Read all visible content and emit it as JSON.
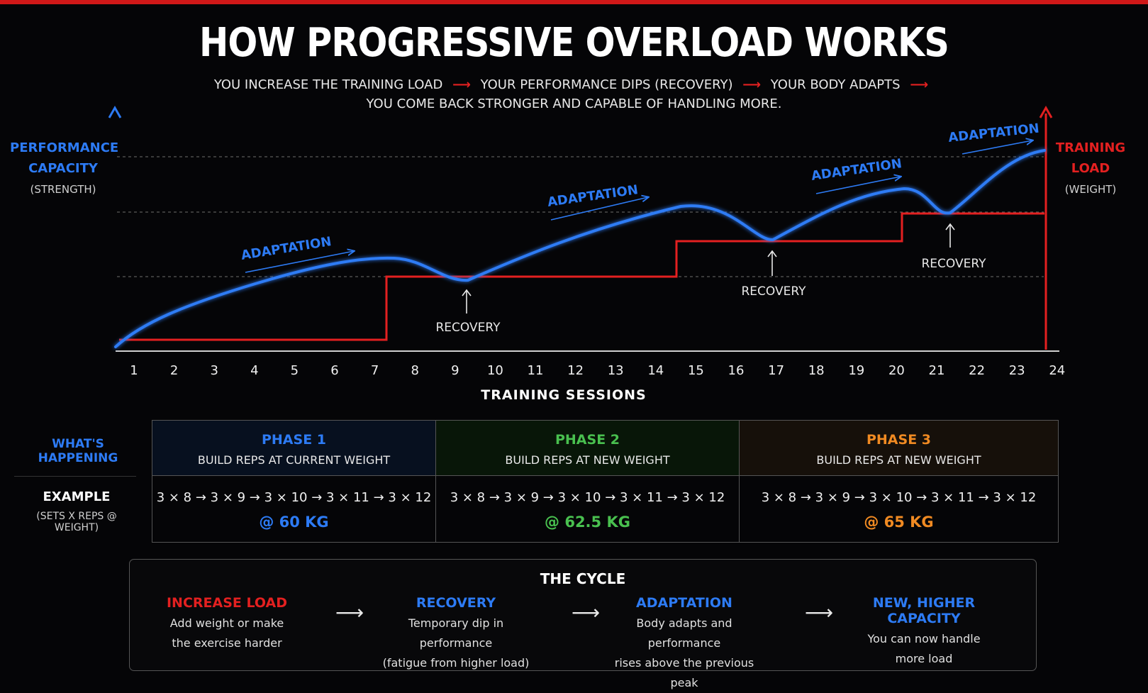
{
  "title": "HOW PROGRESSIVE OVERLOAD WORKS",
  "subtitle": {
    "parts": [
      "YOU INCREASE THE TRAINING LOAD",
      "YOUR PERFORMANCE DIPS (RECOVERY)",
      "YOUR BODY ADAPTS"
    ],
    "line2": "YOU COME BACK STRONGER AND CAPABLE OF HANDLING MORE.",
    "arrow": "⟶"
  },
  "colors": {
    "blue": "#2d7bf5",
    "red": "#e32020",
    "green": "#49c04f",
    "orange": "#f08a22"
  },
  "left_axis": {
    "title1": "PERFORMANCE",
    "title2": "CAPACITY",
    "sub": "(STRENGTH)"
  },
  "right_axis": {
    "title1": "TRAINING",
    "title2": "LOAD",
    "sub": "(WEIGHT)"
  },
  "chart_data": {
    "type": "line",
    "xlabel": "TRAINING SESSIONS",
    "categories": [
      "1",
      "2",
      "3",
      "4",
      "5",
      "6",
      "7",
      "8",
      "9",
      "10",
      "11",
      "12",
      "13",
      "14",
      "15",
      "16",
      "17",
      "18",
      "19",
      "20",
      "21",
      "22",
      "23",
      "24"
    ],
    "series": [
      {
        "name": "PERFORMANCE CAPACITY",
        "color": "#2d7bf5",
        "style": "curve"
      },
      {
        "name": "TRAINING LOAD",
        "color": "#e32020",
        "style": "step",
        "load_steps": [
          {
            "from": 1,
            "to": 7.3,
            "level": 0
          },
          {
            "from": 7.3,
            "to": 14.5,
            "level": 1
          },
          {
            "from": 14.5,
            "to": 20.3,
            "level": 2
          },
          {
            "from": 20.3,
            "to": 24,
            "level": 3
          }
        ]
      }
    ],
    "annotations": {
      "adaptation_label": "ADAPTATION",
      "recovery_label": "RECOVERY",
      "recovery_points": [
        9.3,
        17.0,
        21.6
      ]
    },
    "reference_lines": "dashed",
    "grid": false
  },
  "table": {
    "row1_label": "WHAT'S HAPPENING",
    "row2_label": "EXAMPLE",
    "row2_sub": "(SETS X REPS @ WEIGHT)",
    "phases": [
      {
        "title": "PHASE 1",
        "desc": "BUILD REPS AT CURRENT WEIGHT",
        "example": "3 × 8 → 3 × 9 → 3 × 10 → 3 × 11 → 3 × 12",
        "weight": "@ 60 KG"
      },
      {
        "title": "PHASE 2",
        "desc": "BUILD REPS AT NEW WEIGHT",
        "example": "3 × 8 → 3 × 9 → 3 × 10 → 3 × 11 → 3 × 12",
        "weight": "@ 62.5 KG"
      },
      {
        "title": "PHASE 3",
        "desc": "BUILD REPS AT NEW WEIGHT",
        "example": "3 × 8 → 3 × 9 → 3 × 10 → 3 × 11 → 3 × 12",
        "weight": "@ 65 KG"
      }
    ]
  },
  "cycle": {
    "title": "THE CYCLE",
    "arrow": "⟶",
    "steps": [
      {
        "title": "INCREASE LOAD",
        "line1": "Add weight or make",
        "line2": "the exercise harder"
      },
      {
        "title": "RECOVERY",
        "line1": "Temporary dip in performance",
        "line2": "(fatigue from higher load)"
      },
      {
        "title": "ADAPTATION",
        "line1": "Body adapts and performance",
        "line2": "rises above the previous peak"
      },
      {
        "title": "NEW, HIGHER CAPACITY",
        "line1": "You can now handle",
        "line2": "more load"
      }
    ]
  }
}
